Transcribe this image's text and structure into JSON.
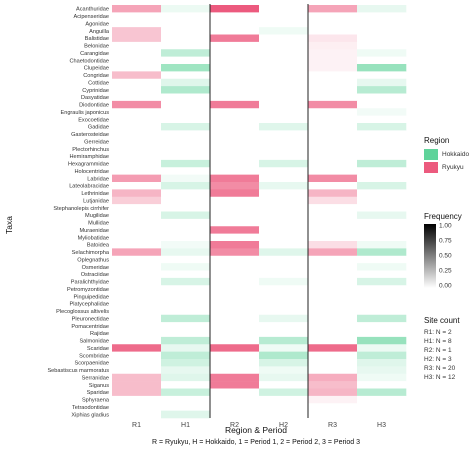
{
  "chart_data": {
    "type": "heatmap",
    "ylabel": "Taxa",
    "xlabel": "Region & Period",
    "caption": "R = Ryukyu, H = Hokkaido, 1 = Period 1, 2 = Period 2, 3 = Period 3",
    "columns": [
      "R1",
      "H1",
      "R2",
      "H2",
      "R3",
      "H3"
    ],
    "column_region": [
      "Ryukyu",
      "Hokkaido",
      "Ryukyu",
      "Hokkaido",
      "Ryukyu",
      "Hokkaido"
    ],
    "colors": {
      "Hokkaido": "#5fd39a",
      "Ryukyu": "#ec5a7e",
      "grid_line": "#222222"
    },
    "taxa": [
      "Acanthuridae",
      "Acipenseridae",
      "Agonidae",
      "Anguilla",
      "Balistidae",
      "Belonidae",
      "Carangidae",
      "Chaetodontidae",
      "Clupeidae",
      "Congridae",
      "Cottidae",
      "Cyprinidae",
      "Dasyatidae",
      "Diodontidae",
      "Engraulis japonicus",
      "Exocoetidae",
      "Gadidae",
      "Gasterosteidae",
      "Gerreidae",
      "Plectorhinchus",
      "Hemiramphidae",
      "Hexagrammidae",
      "Holocentridae",
      "Labridae",
      "Lateolabracidae",
      "Lethrinidae",
      "Lutjanidae",
      "Stephanolepis cirrhifer",
      "Mugilidae",
      "Mullidae",
      "Muraenidae",
      "Myliobatidae",
      "Batoidea",
      "Selachimorpha",
      "Oplegnathus",
      "Osmeridae",
      "Ostraciidae",
      "Paralichthyidae",
      "Petromyzontidae",
      "Pinguipedidae",
      "Platycephalidae",
      "Plecoglossus altivelis",
      "Pleuronectidae",
      "Pomacentridae",
      "Rajidae",
      "Salmonidae",
      "Scaridae",
      "Scombridae",
      "Scorpaenidae",
      "Sebastiscus marmoratus",
      "Serranidae",
      "Siganus",
      "Sparidae",
      "Sphyraena",
      "Tetraodontidae",
      "Xiphias gladius"
    ],
    "frequency": [
      [
        0.55,
        0.12,
        1.0,
        0.0,
        0.55,
        0.15
      ],
      [
        0.0,
        0.0,
        0.0,
        0.0,
        0.0,
        0.0
      ],
      [
        0.0,
        0.0,
        0.0,
        0.0,
        0.0,
        0.0
      ],
      [
        0.35,
        0.0,
        0.0,
        0.1,
        0.0,
        0.0
      ],
      [
        0.35,
        0.0,
        0.8,
        0.0,
        0.15,
        0.0
      ],
      [
        0.0,
        0.0,
        0.0,
        0.0,
        0.1,
        0.0
      ],
      [
        0.0,
        0.4,
        0.0,
        0.0,
        0.08,
        0.1
      ],
      [
        0.0,
        0.0,
        0.0,
        0.0,
        0.08,
        0.0
      ],
      [
        0.0,
        0.6,
        0.0,
        0.0,
        0.08,
        0.65
      ],
      [
        0.4,
        0.0,
        0.0,
        0.0,
        0.0,
        0.0
      ],
      [
        0.0,
        0.2,
        0.0,
        0.0,
        0.0,
        0.15
      ],
      [
        0.0,
        0.5,
        0.0,
        0.0,
        0.0,
        0.45
      ],
      [
        0.0,
        0.0,
        0.0,
        0.0,
        0.0,
        0.0
      ],
      [
        0.7,
        0.0,
        0.8,
        0.0,
        0.7,
        0.0
      ],
      [
        0.0,
        0.0,
        0.0,
        0.0,
        0.0,
        0.08
      ],
      [
        0.0,
        0.0,
        0.0,
        0.0,
        0.0,
        0.0
      ],
      [
        0.0,
        0.25,
        0.0,
        0.2,
        0.0,
        0.25
      ],
      [
        0.0,
        0.0,
        0.0,
        0.0,
        0.0,
        0.0
      ],
      [
        0.0,
        0.0,
        0.0,
        0.0,
        0.0,
        0.0
      ],
      [
        0.0,
        0.0,
        0.0,
        0.0,
        0.0,
        0.0
      ],
      [
        0.0,
        0.0,
        0.0,
        0.0,
        0.0,
        0.0
      ],
      [
        0.0,
        0.35,
        0.0,
        0.25,
        0.0,
        0.4
      ],
      [
        0.0,
        0.0,
        0.0,
        0.0,
        0.0,
        0.0
      ],
      [
        0.6,
        0.08,
        0.8,
        0.0,
        0.7,
        0.0
      ],
      [
        0.0,
        0.25,
        0.7,
        0.15,
        0.0,
        0.25
      ],
      [
        0.45,
        0.0,
        0.8,
        0.0,
        0.45,
        0.0
      ],
      [
        0.3,
        0.0,
        0.0,
        0.0,
        0.2,
        0.0
      ],
      [
        0.0,
        0.0,
        0.0,
        0.0,
        0.0,
        0.0
      ],
      [
        0.0,
        0.25,
        0.0,
        0.0,
        0.0,
        0.15
      ],
      [
        0.0,
        0.0,
        0.0,
        0.0,
        0.0,
        0.0
      ],
      [
        0.0,
        0.0,
        0.8,
        0.0,
        0.0,
        0.0
      ],
      [
        0.0,
        0.0,
        0.0,
        0.0,
        0.0,
        0.0
      ],
      [
        0.0,
        0.08,
        0.8,
        0.0,
        0.2,
        0.1
      ],
      [
        0.55,
        0.15,
        0.7,
        0.2,
        0.55,
        0.5
      ],
      [
        0.0,
        0.0,
        0.0,
        0.0,
        0.0,
        0.0
      ],
      [
        0.0,
        0.1,
        0.0,
        0.0,
        0.0,
        0.1
      ],
      [
        0.0,
        0.0,
        0.0,
        0.0,
        0.0,
        0.0
      ],
      [
        0.0,
        0.25,
        0.0,
        0.1,
        0.0,
        0.25
      ],
      [
        0.0,
        0.0,
        0.0,
        0.0,
        0.0,
        0.0
      ],
      [
        0.0,
        0.0,
        0.0,
        0.0,
        0.0,
        0.0
      ],
      [
        0.0,
        0.0,
        0.0,
        0.0,
        0.0,
        0.0
      ],
      [
        0.0,
        0.0,
        0.0,
        0.0,
        0.0,
        0.0
      ],
      [
        0.0,
        0.4,
        0.0,
        0.15,
        0.0,
        0.4
      ],
      [
        0.0,
        0.0,
        0.0,
        0.0,
        0.0,
        0.0
      ],
      [
        0.0,
        0.0,
        0.0,
        0.0,
        0.0,
        0.0
      ],
      [
        0.0,
        0.4,
        0.0,
        0.45,
        0.0,
        0.65
      ],
      [
        0.9,
        0.15,
        0.9,
        0.1,
        0.9,
        0.12
      ],
      [
        0.0,
        0.4,
        0.0,
        0.5,
        0.0,
        0.4
      ],
      [
        0.0,
        0.3,
        0.0,
        0.25,
        0.0,
        0.2
      ],
      [
        0.0,
        0.15,
        0.0,
        0.1,
        0.0,
        0.15
      ],
      [
        0.4,
        0.2,
        0.8,
        0.15,
        0.5,
        0.1
      ],
      [
        0.4,
        0.0,
        0.8,
        0.0,
        0.4,
        0.0
      ],
      [
        0.4,
        0.35,
        0.0,
        0.3,
        0.45,
        0.45
      ],
      [
        0.0,
        0.0,
        0.0,
        0.0,
        0.08,
        0.0
      ],
      [
        0.0,
        0.0,
        0.0,
        0.0,
        0.0,
        0.0
      ],
      [
        0.0,
        0.2,
        0.0,
        0.0,
        0.0,
        0.0
      ]
    ],
    "legend_region": {
      "title": "Region",
      "entries": [
        "Hokkaido",
        "Ryukyu"
      ],
      "placement": "right"
    },
    "legend_frequency": {
      "title": "Frequency",
      "ticks": [
        "1.00",
        "0.75",
        "0.50",
        "0.25",
        "0.00"
      ],
      "tick_values": [
        1.0,
        0.75,
        0.5,
        0.25,
        0.0
      ],
      "placement": "right"
    },
    "legend_site_count": {
      "title": "Site count",
      "entries": [
        "R1: N = 2",
        "H1: N = 8",
        "R2: N = 1",
        "H2: N = 3",
        "R3: N = 20",
        "H3: N = 12"
      ],
      "placement": "right"
    }
  }
}
